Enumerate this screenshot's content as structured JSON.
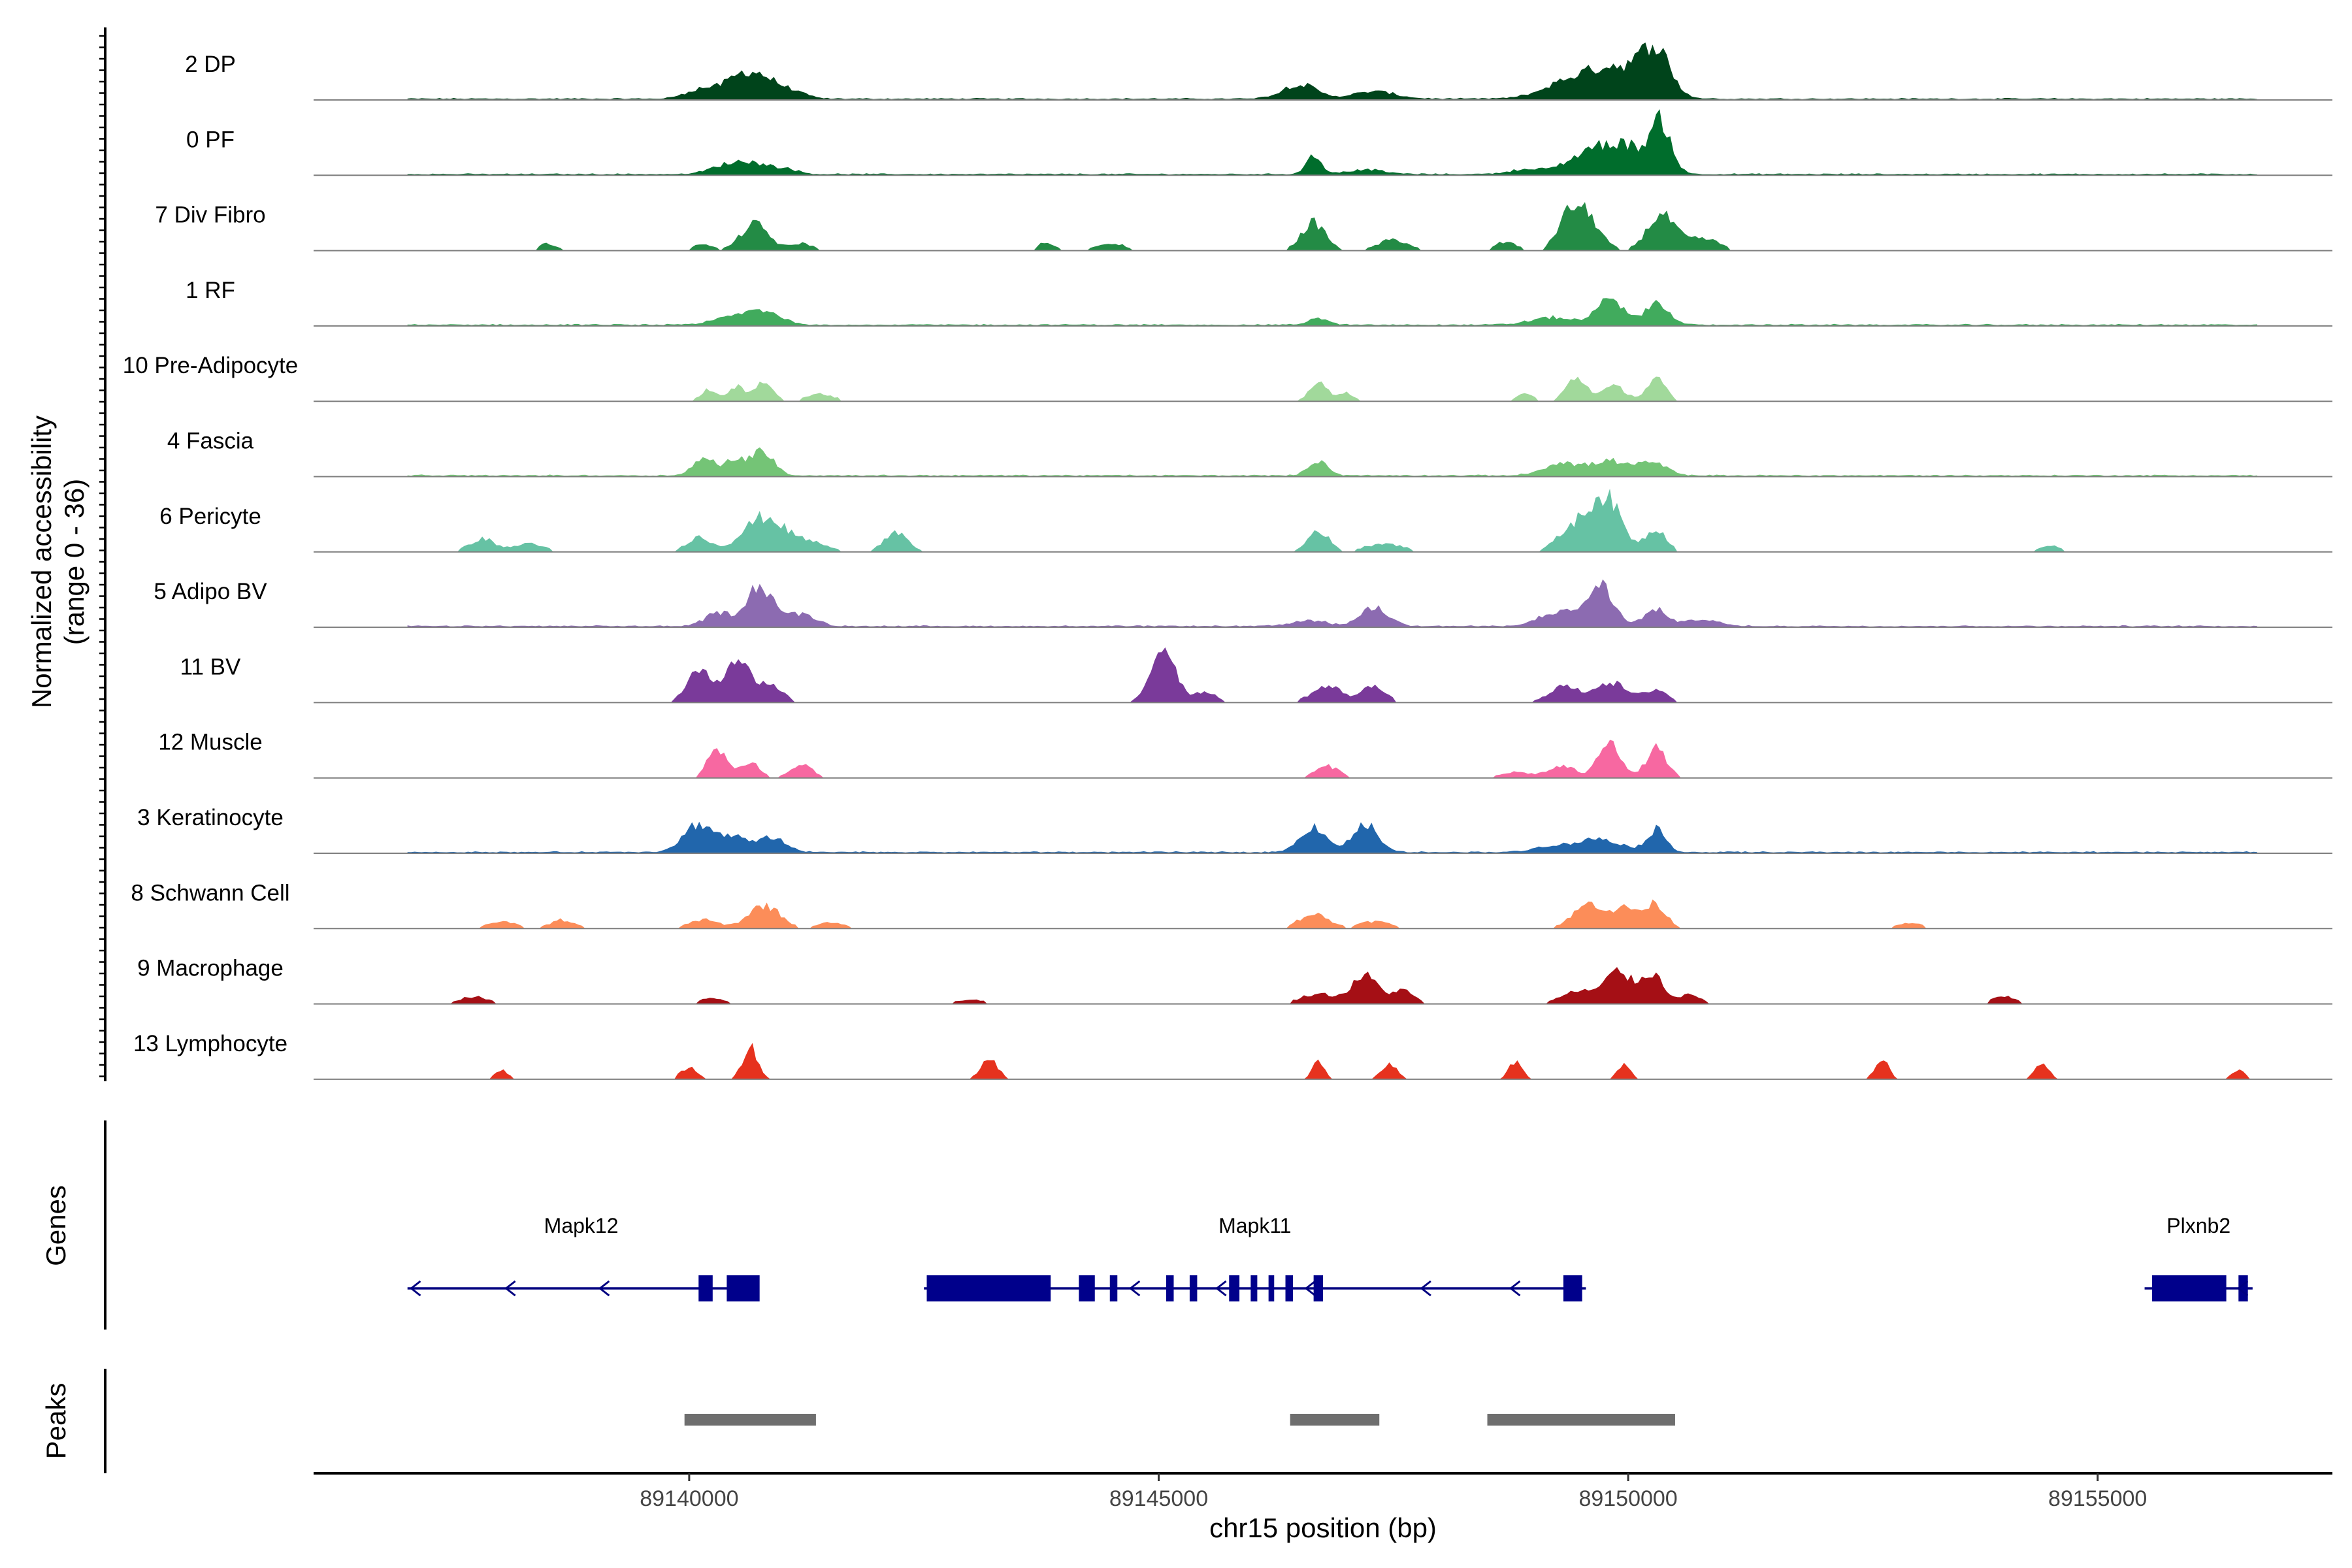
{
  "chart_data": {
    "type": "area",
    "title": "",
    "ylabel_line1": "Normalized accessibility",
    "ylabel_line2": "(range 0 - 36)",
    "y_range": [
      0,
      36
    ],
    "xlabel": "chr15 position (bp)",
    "xlim": [
      89136000,
      89157500
    ],
    "x_ticks": [
      89140000,
      89145000,
      89150000,
      89155000
    ],
    "tracks": [
      {
        "name": "2 DP",
        "color": "#00441b",
        "fill_quiet": true,
        "peaks": [
          [
            89140100,
            0.12,
            150
          ],
          [
            89140550,
            0.28,
            200
          ],
          [
            89140800,
            0.18,
            180
          ],
          [
            89141100,
            0.08,
            150
          ],
          [
            89146500,
            0.2,
            180
          ],
          [
            89147300,
            0.1,
            220
          ],
          [
            89149300,
            0.14,
            260
          ],
          [
            89149750,
            0.3,
            320
          ],
          [
            89150300,
            0.58,
            150
          ],
          [
            89150000,
            0.18,
            260
          ]
        ]
      },
      {
        "name": "0 PF",
        "color": "#006d2c",
        "fill_quiet": true,
        "peaks": [
          [
            89140350,
            0.1,
            150
          ],
          [
            89140650,
            0.16,
            160
          ],
          [
            89141000,
            0.08,
            140
          ],
          [
            89146650,
            0.25,
            80
          ],
          [
            89147200,
            0.06,
            200
          ],
          [
            89148900,
            0.06,
            180
          ],
          [
            89149700,
            0.38,
            280
          ],
          [
            89150350,
            0.68,
            110
          ],
          [
            89150050,
            0.2,
            160
          ]
        ]
      },
      {
        "name": "7 Div Fibro",
        "color": "#238b45",
        "fill_quiet": false,
        "peaks": [
          [
            89138500,
            0.1,
            90
          ],
          [
            89140150,
            0.1,
            90
          ],
          [
            89140700,
            0.36,
            150
          ],
          [
            89141200,
            0.1,
            120
          ],
          [
            89143800,
            0.12,
            90
          ],
          [
            89144500,
            0.1,
            150
          ],
          [
            89146650,
            0.38,
            130
          ],
          [
            89147500,
            0.15,
            160
          ],
          [
            89148700,
            0.12,
            120
          ],
          [
            89149550,
            0.46,
            150
          ],
          [
            89149350,
            0.35,
            120
          ],
          [
            89150350,
            0.48,
            150
          ],
          [
            89150800,
            0.16,
            180
          ]
        ]
      },
      {
        "name": "1 RF",
        "color": "#41ab5d",
        "fill_quiet": true,
        "peaks": [
          [
            89140450,
            0.1,
            190
          ],
          [
            89140800,
            0.18,
            180
          ],
          [
            89146700,
            0.08,
            110
          ],
          [
            89149200,
            0.1,
            230
          ],
          [
            89149800,
            0.4,
            130
          ],
          [
            89150300,
            0.3,
            130
          ]
        ]
      },
      {
        "name": "10 Pre-Adipocyte",
        "color": "#a1d99b",
        "fill_quiet": false,
        "peaks": [
          [
            89140200,
            0.16,
            80
          ],
          [
            89140500,
            0.2,
            90
          ],
          [
            89140800,
            0.3,
            90
          ],
          [
            89141400,
            0.1,
            150
          ],
          [
            89146700,
            0.28,
            90
          ],
          [
            89147000,
            0.12,
            80
          ],
          [
            89148900,
            0.1,
            100
          ],
          [
            89149450,
            0.32,
            110
          ],
          [
            89149850,
            0.2,
            130
          ],
          [
            89150300,
            0.3,
            100
          ]
        ]
      },
      {
        "name": "4 Fascia",
        "color": "#74c476",
        "fill_quiet": true,
        "peaks": [
          [
            89140150,
            0.22,
            110
          ],
          [
            89140500,
            0.22,
            140
          ],
          [
            89140800,
            0.32,
            110
          ],
          [
            89146700,
            0.2,
            100
          ],
          [
            89149300,
            0.18,
            190
          ],
          [
            89149800,
            0.2,
            170
          ],
          [
            89150250,
            0.18,
            150
          ]
        ]
      },
      {
        "name": "6 Pericyte",
        "color": "#66c2a4",
        "fill_quiet": false,
        "peaks": [
          [
            89137800,
            0.18,
            140
          ],
          [
            89138300,
            0.12,
            150
          ],
          [
            89140100,
            0.2,
            130
          ],
          [
            89140800,
            0.48,
            220
          ],
          [
            89142200,
            0.25,
            130
          ],
          [
            89141300,
            0.12,
            180
          ],
          [
            89146700,
            0.3,
            110
          ],
          [
            89147400,
            0.12,
            200
          ],
          [
            89149750,
            0.75,
            170
          ],
          [
            89149400,
            0.3,
            160
          ],
          [
            89150300,
            0.32,
            110
          ],
          [
            89154500,
            0.1,
            100
          ]
        ]
      },
      {
        "name": "5 Adipo BV",
        "color": "#8c6bb1",
        "fill_quiet": true,
        "peaks": [
          [
            89140300,
            0.18,
            130
          ],
          [
            89140750,
            0.55,
            150
          ],
          [
            89141200,
            0.16,
            150
          ],
          [
            89147300,
            0.25,
            150
          ],
          [
            89146600,
            0.08,
            180
          ],
          [
            89149700,
            0.55,
            140
          ],
          [
            89149250,
            0.2,
            190
          ],
          [
            89150300,
            0.22,
            130
          ],
          [
            89150800,
            0.1,
            150
          ]
        ]
      },
      {
        "name": "11 BV",
        "color": "#7a3a9a",
        "fill_quiet": false,
        "peaks": [
          [
            89140100,
            0.42,
            130
          ],
          [
            89140500,
            0.6,
            130
          ],
          [
            89140850,
            0.25,
            140
          ],
          [
            89145050,
            0.78,
            130
          ],
          [
            89145500,
            0.15,
            120
          ],
          [
            89146800,
            0.22,
            170
          ],
          [
            89147300,
            0.24,
            120
          ],
          [
            89149300,
            0.22,
            150
          ],
          [
            89149800,
            0.28,
            180
          ],
          [
            89150300,
            0.18,
            120
          ]
        ]
      },
      {
        "name": "12 Muscle",
        "color": "#f768a1",
        "fill_quiet": false,
        "peaks": [
          [
            89140300,
            0.42,
            100
          ],
          [
            89140650,
            0.22,
            100
          ],
          [
            89141200,
            0.18,
            120
          ],
          [
            89146800,
            0.16,
            130
          ],
          [
            89149300,
            0.16,
            150
          ],
          [
            89149800,
            0.55,
            110
          ],
          [
            89150300,
            0.4,
            110
          ],
          [
            89148800,
            0.08,
            160
          ]
        ]
      },
      {
        "name": "3 Keratinocyte",
        "color": "#2166ac",
        "fill_quiet": true,
        "peaks": [
          [
            89140100,
            0.38,
            160
          ],
          [
            89140500,
            0.2,
            150
          ],
          [
            89140900,
            0.2,
            130
          ],
          [
            89146650,
            0.35,
            140
          ],
          [
            89147200,
            0.38,
            130
          ],
          [
            89149700,
            0.18,
            230
          ],
          [
            89150300,
            0.3,
            100
          ],
          [
            89149200,
            0.08,
            200
          ]
        ]
      },
      {
        "name": "8 Schwann Cell",
        "color": "#fc8d59",
        "fill_quiet": false,
        "peaks": [
          [
            89138000,
            0.1,
            150
          ],
          [
            89138650,
            0.12,
            130
          ],
          [
            89140150,
            0.12,
            160
          ],
          [
            89140800,
            0.32,
            170
          ],
          [
            89141500,
            0.08,
            150
          ],
          [
            89146650,
            0.2,
            160
          ],
          [
            89147300,
            0.1,
            170
          ],
          [
            89149600,
            0.34,
            180
          ],
          [
            89150000,
            0.25,
            130
          ],
          [
            89150300,
            0.32,
            110
          ],
          [
            89153000,
            0.08,
            130
          ]
        ]
      },
      {
        "name": "9 Macrophage",
        "color": "#a50f15",
        "fill_quiet": false,
        "peaks": [
          [
            89137700,
            0.1,
            150
          ],
          [
            89140250,
            0.08,
            150
          ],
          [
            89143000,
            0.06,
            150
          ],
          [
            89146700,
            0.14,
            190
          ],
          [
            89147200,
            0.38,
            140
          ],
          [
            89147600,
            0.18,
            120
          ],
          [
            89149500,
            0.18,
            200
          ],
          [
            89149900,
            0.42,
            130
          ],
          [
            89150250,
            0.42,
            120
          ],
          [
            89150650,
            0.12,
            130
          ],
          [
            89154000,
            0.1,
            130
          ]
        ]
      },
      {
        "name": "13 Lymphocyte",
        "color": "#e6321e",
        "fill_quiet": false,
        "peaks": [
          [
            89138000,
            0.12,
            70
          ],
          [
            89140000,
            0.16,
            90
          ],
          [
            89140650,
            0.45,
            80
          ],
          [
            89143200,
            0.28,
            90
          ],
          [
            89146700,
            0.26,
            60
          ],
          [
            89147450,
            0.2,
            90
          ],
          [
            89148800,
            0.24,
            70
          ],
          [
            89149950,
            0.2,
            70
          ],
          [
            89152700,
            0.28,
            70
          ],
          [
            89154400,
            0.2,
            80
          ],
          [
            89156500,
            0.14,
            70
          ]
        ]
      }
    ],
    "genes_panel_title": "Genes",
    "genes": [
      {
        "name": "Mapk12",
        "start": 89137000,
        "end": 89140700,
        "strand": "-",
        "exons": [
          [
            89140100,
            89140250
          ],
          [
            89140400,
            89140750
          ]
        ],
        "arrows": [
          89137040,
          89138050,
          89139050
        ]
      },
      {
        "name": "Mapk11",
        "start": 89142500,
        "end": 89149550,
        "strand": "-",
        "exons": [
          [
            89142530,
            89143850
          ],
          [
            89144150,
            89144320
          ],
          [
            89144480,
            89144560
          ],
          [
            89145080,
            89145160
          ],
          [
            89145330,
            89145410
          ],
          [
            89145750,
            89145860
          ],
          [
            89145980,
            89146050
          ],
          [
            89146170,
            89146230
          ],
          [
            89146350,
            89146430
          ],
          [
            89146650,
            89146750
          ],
          [
            89149310,
            89149510
          ]
        ],
        "arrows": [
          89144700,
          89145620,
          89146570,
          89147800,
          89148750
        ]
      },
      {
        "name": "Plxnb2",
        "start": 89155500,
        "end": 89156650,
        "strand": "-",
        "exons": [
          [
            89155580,
            89156370
          ],
          [
            89156500,
            89156600
          ]
        ],
        "arrows": [
          89156500
        ]
      }
    ],
    "peaks_panel_title": "Peaks",
    "peak_regions": [
      [
        89139950,
        89141350
      ],
      [
        89146400,
        89147350
      ],
      [
        89148500,
        89150500
      ]
    ]
  }
}
